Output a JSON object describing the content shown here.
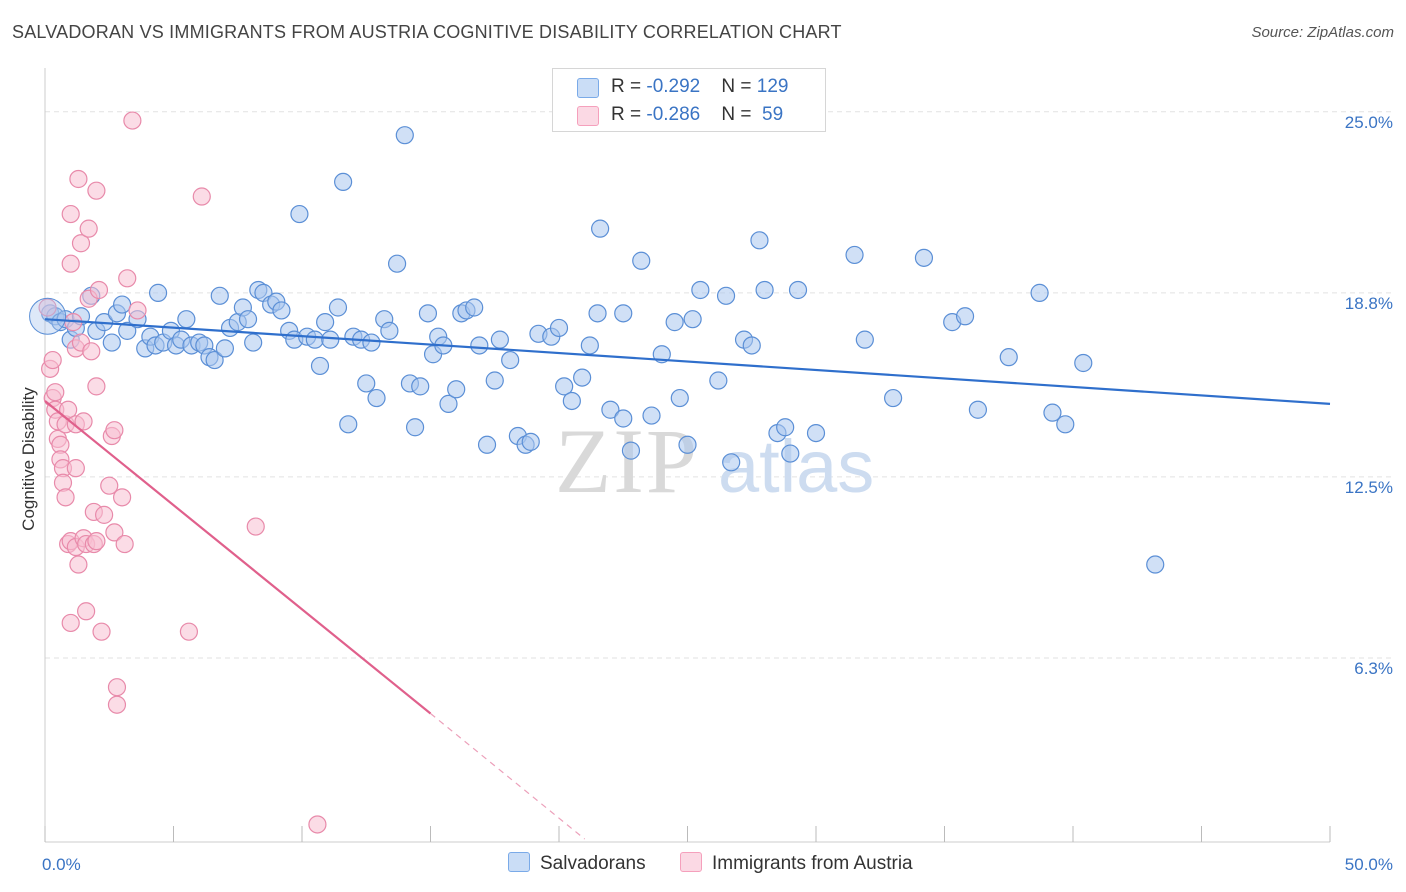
{
  "title": "SALVADORAN VS IMMIGRANTS FROM AUSTRIA COGNITIVE DISABILITY CORRELATION CHART",
  "source": "Source: ZipAtlas.com",
  "watermark": {
    "zip": "ZIP",
    "atlas": "atlas"
  },
  "legend_top": [
    {
      "r_label": "R = ",
      "r_value": "-0.292",
      "n_label": "N = ",
      "n_value": "129",
      "color": "#7aaae8"
    },
    {
      "r_label": "R = ",
      "r_value": "-0.286",
      "n_label": "N = ",
      "n_value": " 59",
      "color": "#f5a0bc"
    }
  ],
  "chart_data": {
    "type": "scatter",
    "xlabel": "",
    "ylabel": "Cognitive Disability",
    "xlim": [
      0,
      50
    ],
    "ylim": [
      0,
      26.5
    ],
    "x_tick_labels": [
      "0.0%",
      "50.0%"
    ],
    "y_ticks": [
      6.3,
      12.5,
      18.8,
      25.0
    ],
    "y_tick_labels": [
      "6.3%",
      "12.5%",
      "18.8%",
      "25.0%"
    ],
    "grid": true,
    "legend_position": "bottom",
    "series": [
      {
        "name": "Salvadorans",
        "color": "#5b8fd6",
        "fill": "#a9c6ee",
        "trend": {
          "x": [
            0,
            50
          ],
          "y": [
            17.9,
            15.0
          ],
          "color": "#2f6fcc"
        },
        "points": [
          [
            0.2,
            18.1
          ],
          [
            0.4,
            18.0
          ],
          [
            0.6,
            17.8
          ],
          [
            0.8,
            17.9
          ],
          [
            1.0,
            17.2
          ],
          [
            1.2,
            17.6
          ],
          [
            1.4,
            18.0
          ],
          [
            1.8,
            18.7
          ],
          [
            2.0,
            17.5
          ],
          [
            2.3,
            17.8
          ],
          [
            2.6,
            17.1
          ],
          [
            2.8,
            18.1
          ],
          [
            3.0,
            18.4
          ],
          [
            3.2,
            17.5
          ],
          [
            3.6,
            17.9
          ],
          [
            3.9,
            16.9
          ],
          [
            4.1,
            17.3
          ],
          [
            4.3,
            17.0
          ],
          [
            4.4,
            18.8
          ],
          [
            4.6,
            17.1
          ],
          [
            4.9,
            17.5
          ],
          [
            5.1,
            17.0
          ],
          [
            5.3,
            17.2
          ],
          [
            5.5,
            17.9
          ],
          [
            5.7,
            17.0
          ],
          [
            6.0,
            17.1
          ],
          [
            6.2,
            17.0
          ],
          [
            6.4,
            16.6
          ],
          [
            6.6,
            16.5
          ],
          [
            6.8,
            18.7
          ],
          [
            7.0,
            16.9
          ],
          [
            7.2,
            17.6
          ],
          [
            7.5,
            17.8
          ],
          [
            7.7,
            18.3
          ],
          [
            7.9,
            17.9
          ],
          [
            8.1,
            17.1
          ],
          [
            8.3,
            18.9
          ],
          [
            8.5,
            18.8
          ],
          [
            8.8,
            18.4
          ],
          [
            9.0,
            18.5
          ],
          [
            9.2,
            18.2
          ],
          [
            9.5,
            17.5
          ],
          [
            9.7,
            17.2
          ],
          [
            9.9,
            21.5
          ],
          [
            10.2,
            17.3
          ],
          [
            10.5,
            17.2
          ],
          [
            10.7,
            16.3
          ],
          [
            10.9,
            17.8
          ],
          [
            11.1,
            17.2
          ],
          [
            11.4,
            18.3
          ],
          [
            11.6,
            22.6
          ],
          [
            11.8,
            14.3
          ],
          [
            12.0,
            17.3
          ],
          [
            12.3,
            17.2
          ],
          [
            12.5,
            15.7
          ],
          [
            12.7,
            17.1
          ],
          [
            12.9,
            15.2
          ],
          [
            13.2,
            17.9
          ],
          [
            13.4,
            17.5
          ],
          [
            13.7,
            19.8
          ],
          [
            14.0,
            24.2
          ],
          [
            14.2,
            15.7
          ],
          [
            14.4,
            14.2
          ],
          [
            14.6,
            15.6
          ],
          [
            14.9,
            18.1
          ],
          [
            15.1,
            16.7
          ],
          [
            15.3,
            17.3
          ],
          [
            15.5,
            17.0
          ],
          [
            15.7,
            15.0
          ],
          [
            16.0,
            15.5
          ],
          [
            16.2,
            18.1
          ],
          [
            16.4,
            18.2
          ],
          [
            16.7,
            18.3
          ],
          [
            16.9,
            17.0
          ],
          [
            17.2,
            13.6
          ],
          [
            17.5,
            15.8
          ],
          [
            17.7,
            17.2
          ],
          [
            18.1,
            16.5
          ],
          [
            18.4,
            13.9
          ],
          [
            18.7,
            13.6
          ],
          [
            18.9,
            13.7
          ],
          [
            19.2,
            17.4
          ],
          [
            19.7,
            17.3
          ],
          [
            20.0,
            17.6
          ],
          [
            20.2,
            15.6
          ],
          [
            20.5,
            15.1
          ],
          [
            20.9,
            15.9
          ],
          [
            21.2,
            17.0
          ],
          [
            21.5,
            18.1
          ],
          [
            21.6,
            21.0
          ],
          [
            22.0,
            14.8
          ],
          [
            22.5,
            14.5
          ],
          [
            22.5,
            18.1
          ],
          [
            22.8,
            13.4
          ],
          [
            23.2,
            19.9
          ],
          [
            23.6,
            14.6
          ],
          [
            24.0,
            16.7
          ],
          [
            24.5,
            17.8
          ],
          [
            24.7,
            15.2
          ],
          [
            25.0,
            13.6
          ],
          [
            25.2,
            17.9
          ],
          [
            25.5,
            18.9
          ],
          [
            26.2,
            15.8
          ],
          [
            26.5,
            18.7
          ],
          [
            26.7,
            13.0
          ],
          [
            27.2,
            17.2
          ],
          [
            27.5,
            17.0
          ],
          [
            27.8,
            20.6
          ],
          [
            28.0,
            18.9
          ],
          [
            28.5,
            14.0
          ],
          [
            28.8,
            14.2
          ],
          [
            29.0,
            13.3
          ],
          [
            29.3,
            18.9
          ],
          [
            30.0,
            14.0
          ],
          [
            31.5,
            20.1
          ],
          [
            31.9,
            17.2
          ],
          [
            33.0,
            15.2
          ],
          [
            34.2,
            20.0
          ],
          [
            35.3,
            17.8
          ],
          [
            35.8,
            18.0
          ],
          [
            36.3,
            14.8
          ],
          [
            37.5,
            16.6
          ],
          [
            38.7,
            18.8
          ],
          [
            39.2,
            14.7
          ],
          [
            39.7,
            14.3
          ],
          [
            40.4,
            16.4
          ],
          [
            43.2,
            9.5
          ]
        ]
      },
      {
        "name": "Immigrants from Austria",
        "color": "#e88aaa",
        "fill": "#f7bfd1",
        "trend": {
          "x": [
            0,
            15
          ],
          "y": [
            15.1,
            4.4
          ],
          "dash_x": [
            15,
            21
          ],
          "dash_y": [
            4.4,
            0.1
          ],
          "color": "#e0608c"
        },
        "points": [
          [
            0.1,
            18.3
          ],
          [
            0.2,
            16.2
          ],
          [
            0.3,
            16.5
          ],
          [
            0.3,
            15.2
          ],
          [
            0.4,
            15.4
          ],
          [
            0.4,
            14.8
          ],
          [
            0.5,
            14.4
          ],
          [
            0.5,
            13.8
          ],
          [
            0.6,
            13.6
          ],
          [
            0.6,
            13.1
          ],
          [
            0.7,
            12.8
          ],
          [
            0.7,
            12.3
          ],
          [
            0.8,
            14.3
          ],
          [
            0.8,
            11.8
          ],
          [
            0.9,
            14.8
          ],
          [
            0.9,
            10.2
          ],
          [
            1.0,
            10.3
          ],
          [
            1.0,
            7.5
          ],
          [
            1.0,
            21.5
          ],
          [
            1.0,
            19.8
          ],
          [
            1.1,
            17.8
          ],
          [
            1.2,
            16.9
          ],
          [
            1.2,
            14.3
          ],
          [
            1.2,
            12.8
          ],
          [
            1.2,
            10.1
          ],
          [
            1.3,
            9.5
          ],
          [
            1.3,
            22.7
          ],
          [
            1.4,
            20.5
          ],
          [
            1.4,
            17.1
          ],
          [
            1.5,
            14.4
          ],
          [
            1.5,
            10.4
          ],
          [
            1.6,
            7.9
          ],
          [
            1.6,
            10.2
          ],
          [
            1.7,
            18.6
          ],
          [
            1.7,
            21.0
          ],
          [
            1.8,
            16.8
          ],
          [
            1.9,
            11.3
          ],
          [
            1.9,
            10.2
          ],
          [
            2.0,
            10.3
          ],
          [
            2.0,
            15.6
          ],
          [
            2.0,
            22.3
          ],
          [
            2.1,
            18.9
          ],
          [
            2.2,
            7.2
          ],
          [
            2.3,
            11.2
          ],
          [
            2.5,
            12.2
          ],
          [
            2.6,
            13.9
          ],
          [
            2.7,
            10.6
          ],
          [
            2.7,
            14.1
          ],
          [
            2.8,
            5.3
          ],
          [
            2.8,
            4.7
          ],
          [
            3.0,
            11.8
          ],
          [
            3.1,
            10.2
          ],
          [
            3.2,
            19.3
          ],
          [
            3.4,
            24.7
          ],
          [
            3.6,
            18.2
          ],
          [
            5.6,
            7.2
          ],
          [
            6.1,
            22.1
          ],
          [
            8.2,
            10.8
          ],
          [
            10.6,
            0.6
          ]
        ]
      }
    ]
  },
  "legend_bottom": [
    {
      "label": "Salvadorans",
      "color": "#7aaae8"
    },
    {
      "label": "Immigrants from Austria",
      "color": "#f5a0bc"
    }
  ]
}
